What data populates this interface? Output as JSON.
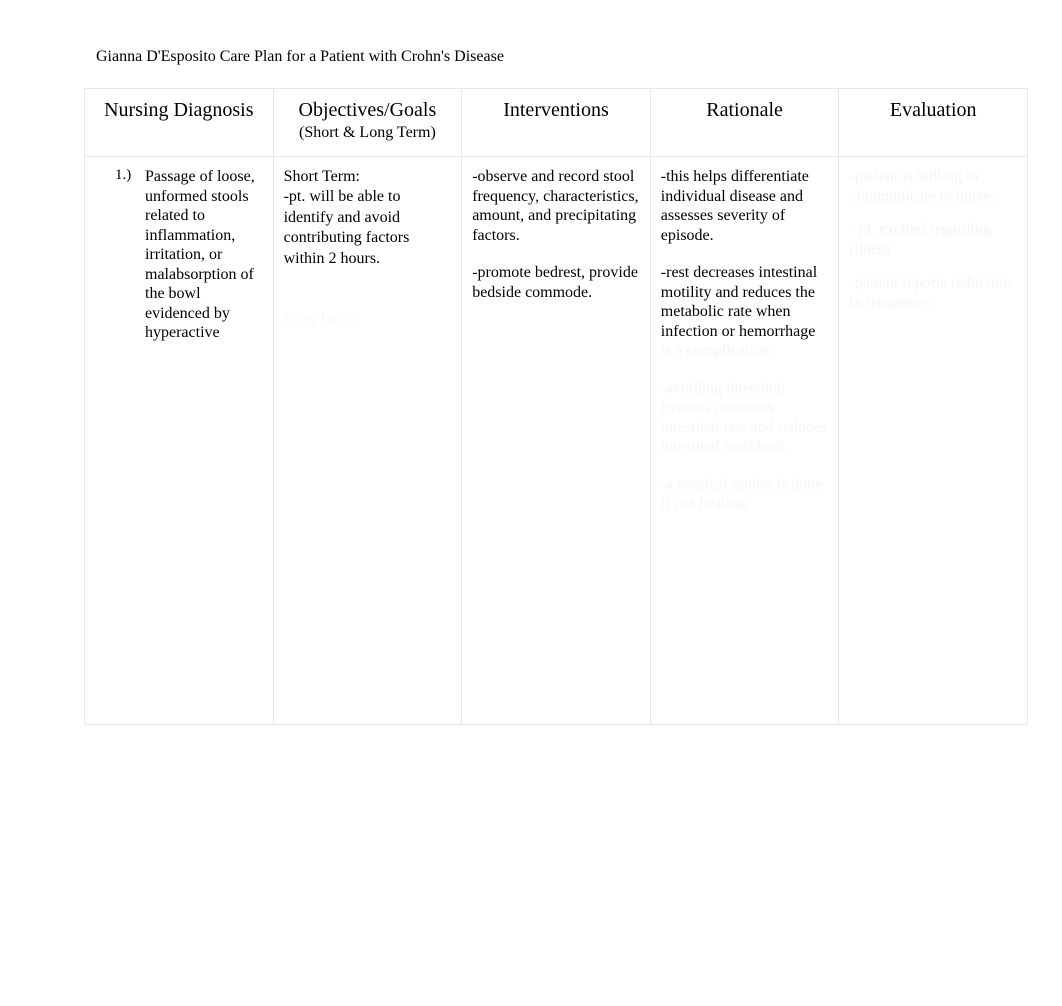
{
  "document": {
    "title": "Gianna D'Esposito Care Plan for a Patient with Crohn's Disease",
    "background_color": "#ffffff",
    "text_color": "#000000",
    "hidden_text_color": "#f6f6f6",
    "border_color": "#e8e8e8",
    "font_family": "Times New Roman",
    "title_fontsize": 16,
    "header_fontsize": 20,
    "body_fontsize": 16
  },
  "table": {
    "headers": {
      "diagnosis": "Nursing Diagnosis",
      "objectives": "Objectives/Goals",
      "objectives_sub": "(Short & Long Term)",
      "interventions": "Interventions",
      "rationale": "Rationale",
      "evaluation": "Evaluation"
    },
    "row1": {
      "diagnosis": {
        "number": "1.)",
        "text": "Passage of loose, unformed stools related to inflammation, irritation, or malabsorption of the bowl evidenced by hyperactive"
      },
      "objectives": {
        "short_term_label": "Short Term:",
        "short_term_text": "-pt. will be able to identify and avoid contributing factors within 2 hours.",
        "hidden_text": "Long Term:"
      },
      "interventions": {
        "item1": "-observe and record stool frequency, characteristics, amount, and precipitating factors.",
        "item2": "-promote bedrest, provide bedside commode."
      },
      "rationale": {
        "item1": "-this helps differentiate individual disease and assesses severity of episode.",
        "item2": "-rest decreases intestinal motility and reduces the metabolic rate when infection or hemorrhage",
        "hidden1": "is a complication.",
        "hidden2": "-avoiding intestinal irritants promotes intestinal rest and reduces intestinal workload.",
        "hidden3": "-a surgical option is done if not healing."
      },
      "evaluation": {
        "hidden1": "-patient is willing to communicate to nurse.",
        "hidden2": "- pt. excited regarding illness",
        "hidden3": "-patient reports reduction in frequency."
      }
    }
  }
}
